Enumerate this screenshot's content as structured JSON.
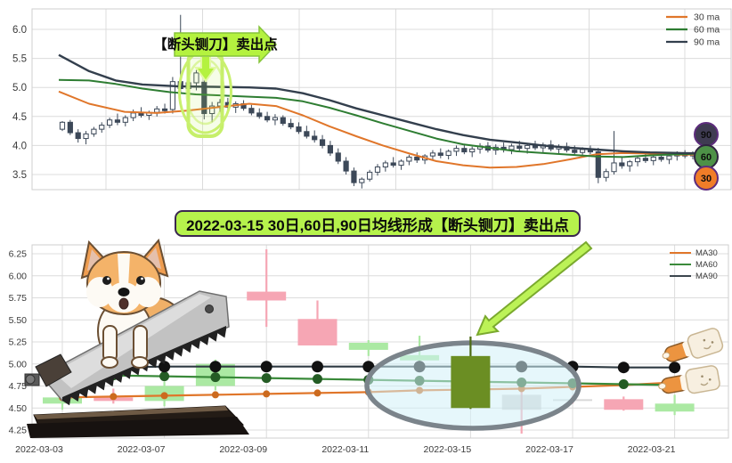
{
  "banner": {
    "text": "2022-03-15 30日,60日,90日均线形成【断头铡刀】卖出点"
  },
  "illustrations": [
    "corgi-guillotine-saw",
    "corgi-loaf",
    "corgi-loaf"
  ],
  "colors": {
    "highlight_green": "#b6f24c",
    "banner_border_purple": "#3a2750",
    "grid": "#dcdcdc",
    "axis_text": "#3a3a3a"
  },
  "chart_data": [
    {
      "type": "candlestick",
      "title": "",
      "yticks": [
        6.0,
        5.5,
        5.0,
        4.5,
        4.0,
        3.5
      ],
      "ylim": [
        3.25,
        6.35
      ],
      "grid": true,
      "legend_position": "upper right",
      "legend": [
        {
          "label": "30 ma",
          "color": "#e0762a"
        },
        {
          "label": "60 ma",
          "color": "#2e7d32"
        },
        {
          "label": "90 ma",
          "color": "#333f4d"
        }
      ],
      "badges": [
        {
          "label": "90",
          "fill": "#3f3b52",
          "stroke": "#5e2d7e"
        },
        {
          "label": "60",
          "fill": "#4d9147",
          "stroke": "#2f2440"
        },
        {
          "label": "30",
          "fill": "#f07d28",
          "stroke": "#5e2d7e"
        }
      ],
      "annotation": {
        "text": "【断头铡刀】卖出点"
      },
      "candle_colors": {
        "up_fill": "#ffffff",
        "down_fill": "#3c4858",
        "stroke": "#3c4858"
      },
      "candles": [
        [
          4.28,
          4.42,
          4.25,
          4.4
        ],
        [
          4.4,
          4.44,
          4.18,
          4.22
        ],
        [
          4.22,
          4.28,
          4.05,
          4.12
        ],
        [
          4.12,
          4.25,
          4.02,
          4.2
        ],
        [
          4.2,
          4.32,
          4.15,
          4.28
        ],
        [
          4.28,
          4.4,
          4.22,
          4.35
        ],
        [
          4.35,
          4.48,
          4.3,
          4.44
        ],
        [
          4.44,
          4.55,
          4.35,
          4.4
        ],
        [
          4.4,
          4.52,
          4.33,
          4.48
        ],
        [
          4.48,
          4.62,
          4.42,
          4.56
        ],
        [
          4.56,
          4.66,
          4.48,
          4.52
        ],
        [
          4.52,
          4.6,
          4.44,
          4.57
        ],
        [
          4.57,
          4.68,
          4.5,
          4.63
        ],
        [
          4.63,
          4.72,
          4.55,
          4.6
        ],
        [
          4.62,
          5.18,
          4.55,
          5.1
        ],
        [
          5.1,
          6.25,
          4.9,
          4.98
        ],
        [
          4.98,
          5.15,
          4.85,
          5.08
        ],
        [
          5.08,
          5.3,
          4.95,
          5.25
        ],
        [
          5.09,
          5.33,
          4.45,
          4.55
        ],
        [
          4.55,
          4.75,
          4.4,
          4.68
        ],
        [
          4.68,
          4.8,
          4.58,
          4.74
        ],
        [
          4.74,
          4.82,
          4.62,
          4.66
        ],
        [
          4.66,
          4.76,
          4.56,
          4.72
        ],
        [
          4.72,
          4.78,
          4.6,
          4.64
        ],
        [
          4.64,
          4.7,
          4.52,
          4.56
        ],
        [
          4.56,
          4.64,
          4.46,
          4.5
        ],
        [
          4.5,
          4.58,
          4.4,
          4.44
        ],
        [
          4.44,
          4.54,
          4.35,
          4.48
        ],
        [
          4.48,
          4.52,
          4.34,
          4.38
        ],
        [
          4.38,
          4.46,
          4.28,
          4.32
        ],
        [
          4.32,
          4.4,
          4.2,
          4.24
        ],
        [
          4.24,
          4.34,
          4.12,
          4.16
        ],
        [
          4.16,
          4.26,
          4.05,
          4.1
        ],
        [
          4.1,
          4.18,
          3.95,
          4.0
        ],
        [
          4.0,
          4.08,
          3.82,
          3.87
        ],
        [
          3.87,
          3.95,
          3.68,
          3.73
        ],
        [
          3.73,
          3.8,
          3.5,
          3.56
        ],
        [
          3.56,
          3.62,
          3.3,
          3.36
        ],
        [
          3.36,
          3.45,
          3.26,
          3.42
        ],
        [
          3.42,
          3.58,
          3.38,
          3.54
        ],
        [
          3.54,
          3.68,
          3.48,
          3.63
        ],
        [
          3.63,
          3.74,
          3.55,
          3.7
        ],
        [
          3.7,
          3.8,
          3.62,
          3.66
        ],
        [
          3.66,
          3.76,
          3.58,
          3.73
        ],
        [
          3.73,
          3.84,
          3.66,
          3.8
        ],
        [
          3.8,
          3.88,
          3.7,
          3.75
        ],
        [
          3.75,
          3.85,
          3.68,
          3.82
        ],
        [
          3.82,
          3.92,
          3.74,
          3.87
        ],
        [
          3.87,
          3.95,
          3.78,
          3.83
        ],
        [
          3.83,
          3.93,
          3.76,
          3.9
        ],
        [
          3.9,
          4.0,
          3.82,
          3.95
        ],
        [
          3.95,
          4.02,
          3.85,
          3.89
        ],
        [
          3.89,
          3.98,
          3.8,
          3.94
        ],
        [
          3.94,
          4.04,
          3.86,
          3.99
        ],
        [
          3.99,
          4.06,
          3.88,
          3.92
        ],
        [
          3.92,
          4.02,
          3.84,
          3.97
        ],
        [
          3.97,
          4.05,
          3.88,
          3.93
        ],
        [
          3.93,
          4.03,
          3.85,
          3.99
        ],
        [
          3.99,
          4.08,
          3.9,
          3.95
        ],
        [
          3.95,
          4.04,
          3.86,
          4.0
        ],
        [
          4.0,
          4.08,
          3.92,
          3.96
        ],
        [
          3.96,
          4.05,
          3.88,
          4.01
        ],
        [
          4.01,
          4.09,
          3.9,
          3.94
        ],
        [
          3.94,
          4.02,
          3.85,
          3.98
        ],
        [
          3.98,
          4.05,
          3.88,
          3.92
        ],
        [
          3.92,
          4.0,
          3.84,
          3.88
        ],
        [
          3.88,
          3.97,
          3.8,
          3.93
        ],
        [
          3.93,
          4.0,
          3.85,
          3.89
        ],
        [
          3.89,
          3.96,
          3.35,
          3.45
        ],
        [
          3.45,
          3.6,
          3.38,
          3.55
        ],
        [
          3.55,
          4.25,
          3.5,
          3.7
        ],
        [
          3.7,
          3.8,
          3.6,
          3.65
        ],
        [
          3.65,
          3.75,
          3.55,
          3.72
        ],
        [
          3.72,
          3.82,
          3.64,
          3.78
        ],
        [
          3.78,
          3.86,
          3.7,
          3.74
        ],
        [
          3.74,
          3.84,
          3.66,
          3.8
        ],
        [
          3.8,
          3.88,
          3.72,
          3.76
        ],
        [
          3.76,
          3.85,
          3.68,
          3.82
        ],
        [
          3.82,
          3.9,
          3.74,
          3.86
        ],
        [
          3.86,
          3.92,
          3.78,
          3.82
        ],
        [
          3.82,
          3.9,
          3.76,
          3.87
        ],
        [
          3.87,
          3.93,
          3.8,
          3.84
        ],
        [
          3.84,
          3.92,
          3.78,
          3.88
        ]
      ],
      "series": [
        {
          "name": "30 ma",
          "color": "#e0762a",
          "width": 2,
          "points": [
            [
              66,
              4.93
            ],
            [
              100,
              4.72
            ],
            [
              140,
              4.58
            ],
            [
              176,
              4.56
            ],
            [
              210,
              4.6
            ],
            [
              245,
              4.66
            ],
            [
              280,
              4.72
            ],
            [
              310,
              4.68
            ],
            [
              340,
              4.52
            ],
            [
              370,
              4.33
            ],
            [
              400,
              4.16
            ],
            [
              430,
              4.0
            ],
            [
              460,
              3.86
            ],
            [
              490,
              3.73
            ],
            [
              520,
              3.66
            ],
            [
              550,
              3.62
            ],
            [
              580,
              3.63
            ],
            [
              610,
              3.68
            ],
            [
              640,
              3.76
            ],
            [
              670,
              3.85
            ],
            [
              700,
              3.87
            ],
            [
              730,
              3.86
            ],
            [
              765,
              3.84
            ],
            [
              805,
              3.85
            ]
          ]
        },
        {
          "name": "60 ma",
          "color": "#2e7d32",
          "width": 2,
          "points": [
            [
              66,
              5.13
            ],
            [
              100,
              5.12
            ],
            [
              130,
              5.06
            ],
            [
              160,
              4.98
            ],
            [
              190,
              4.92
            ],
            [
              220,
              4.88
            ],
            [
              250,
              4.86
            ],
            [
              280,
              4.84
            ],
            [
              310,
              4.82
            ],
            [
              340,
              4.76
            ],
            [
              370,
              4.65
            ],
            [
              400,
              4.52
            ],
            [
              430,
              4.38
            ],
            [
              460,
              4.25
            ],
            [
              490,
              4.12
            ],
            [
              520,
              4.02
            ],
            [
              550,
              3.96
            ],
            [
              580,
              3.9
            ],
            [
              610,
              3.87
            ],
            [
              640,
              3.84
            ],
            [
              670,
              3.81
            ],
            [
              700,
              3.8
            ],
            [
              730,
              3.83
            ],
            [
              765,
              3.85
            ],
            [
              805,
              3.87
            ]
          ]
        },
        {
          "name": "90 ma",
          "color": "#333f4d",
          "width": 2.4,
          "points": [
            [
              66,
              5.56
            ],
            [
              100,
              5.28
            ],
            [
              130,
              5.12
            ],
            [
              160,
              5.05
            ],
            [
              200,
              5.02
            ],
            [
              240,
              5.01
            ],
            [
              280,
              5.0
            ],
            [
              310,
              4.98
            ],
            [
              340,
              4.9
            ],
            [
              370,
              4.78
            ],
            [
              400,
              4.64
            ],
            [
              430,
              4.52
            ],
            [
              460,
              4.4
            ],
            [
              490,
              4.28
            ],
            [
              520,
              4.18
            ],
            [
              550,
              4.1
            ],
            [
              580,
              4.05
            ],
            [
              610,
              4.0
            ],
            [
              640,
              3.96
            ],
            [
              670,
              3.93
            ],
            [
              700,
              3.9
            ],
            [
              730,
              3.88
            ],
            [
              765,
              3.87
            ],
            [
              805,
              3.86
            ]
          ]
        }
      ]
    },
    {
      "type": "candlestick",
      "title": "",
      "yticks": [
        6.25,
        6.0,
        5.75,
        5.5,
        5.25,
        5.0,
        4.75,
        4.5,
        4.25
      ],
      "ylim": [
        4.16,
        6.35
      ],
      "grid": true,
      "legend_position": "upper right",
      "legend": [
        {
          "label": "MA30",
          "color": "#e0762a"
        },
        {
          "label": "MA60",
          "color": "#3a8a3a"
        },
        {
          "label": "MA90",
          "color": "#3c464e"
        }
      ],
      "xticklabels": [
        "2022-03-03",
        "2022-03-07",
        "2022-03-09",
        "2022-03-11",
        "2022-03-15",
        "2022-03-17",
        "2022-03-21"
      ],
      "candle_colors": {
        "up": "#abe9a3",
        "down": "#f6a6b4",
        "sell": "#6b8e23",
        "faded": "rgba(184,184,184,0.55)"
      },
      "wick_colors": {
        "up": "#abe9a3",
        "down": "#f6a6b4",
        "sell": "#4e6b14",
        "faded": "#f6a6b4"
      },
      "candles": [
        {
          "date": "2022-03-03",
          "o": 4.55,
          "h": 4.68,
          "l": 4.48,
          "c": 4.62,
          "kind": "up"
        },
        {
          "date": "2022-03-04",
          "o": 4.62,
          "h": 4.72,
          "l": 4.55,
          "c": 4.58,
          "kind": "down"
        },
        {
          "date": "2022-03-07",
          "o": 4.58,
          "h": 4.8,
          "l": 4.52,
          "c": 4.75,
          "kind": "up"
        },
        {
          "date": "2022-03-08",
          "o": 4.75,
          "h": 5.05,
          "l": 4.7,
          "c": 5.0,
          "kind": "up"
        },
        {
          "date": "2022-03-09",
          "o": 5.82,
          "h": 6.3,
          "l": 5.42,
          "c": 5.72,
          "kind": "down"
        },
        {
          "date": "2022-03-10",
          "o": 5.51,
          "h": 5.72,
          "l": 5.21,
          "c": 5.21,
          "kind": "down"
        },
        {
          "date": "2022-03-11",
          "o": 5.16,
          "h": 5.27,
          "l": 5.09,
          "c": 5.24,
          "kind": "up"
        },
        {
          "date": "2022-03-14",
          "o": 5.04,
          "h": 5.32,
          "l": 5.0,
          "c": 5.1,
          "kind": "up"
        },
        {
          "date": "2022-03-15",
          "o": 5.09,
          "h": 5.31,
          "l": 4.49,
          "c": 4.5,
          "kind": "sell"
        },
        {
          "date": "2022-03-16",
          "o": 4.65,
          "h": 4.75,
          "l": 4.21,
          "c": 4.48,
          "kind": "faded"
        },
        {
          "date": "2022-03-17",
          "o": 4.6,
          "h": 4.64,
          "l": 4.55,
          "c": 4.58,
          "kind": "faded"
        },
        {
          "date": "2022-03-18",
          "o": 4.6,
          "h": 4.63,
          "l": 4.47,
          "c": 4.48,
          "kind": "down"
        },
        {
          "date": "2022-03-21",
          "o": 4.46,
          "h": 4.65,
          "l": 4.42,
          "c": 4.55,
          "kind": "up"
        }
      ],
      "series": [
        {
          "name": "MA30",
          "color": "#e0762a",
          "dot": "#cc6a1e",
          "dot_r": 4,
          "values": [
            4.62,
            4.63,
            4.64,
            4.65,
            4.66,
            4.67,
            4.68,
            4.7,
            4.71,
            4.72,
            4.74,
            4.76,
            4.79
          ]
        },
        {
          "name": "MA60",
          "color": "#3a8a3a",
          "dot": "#245c24",
          "dot_r": 5.5,
          "values": [
            4.88,
            4.87,
            4.86,
            4.85,
            4.84,
            4.83,
            4.82,
            4.81,
            4.8,
            4.79,
            4.78,
            4.77,
            4.76
          ]
        },
        {
          "name": "MA90",
          "color": "#2e3a42",
          "dot": "#111111",
          "dot_r": 6.5,
          "values": [
            4.96,
            4.96,
            4.97,
            4.97,
            4.97,
            4.97,
            4.97,
            4.97,
            4.97,
            4.97,
            4.97,
            4.96,
            4.96
          ]
        }
      ]
    }
  ]
}
